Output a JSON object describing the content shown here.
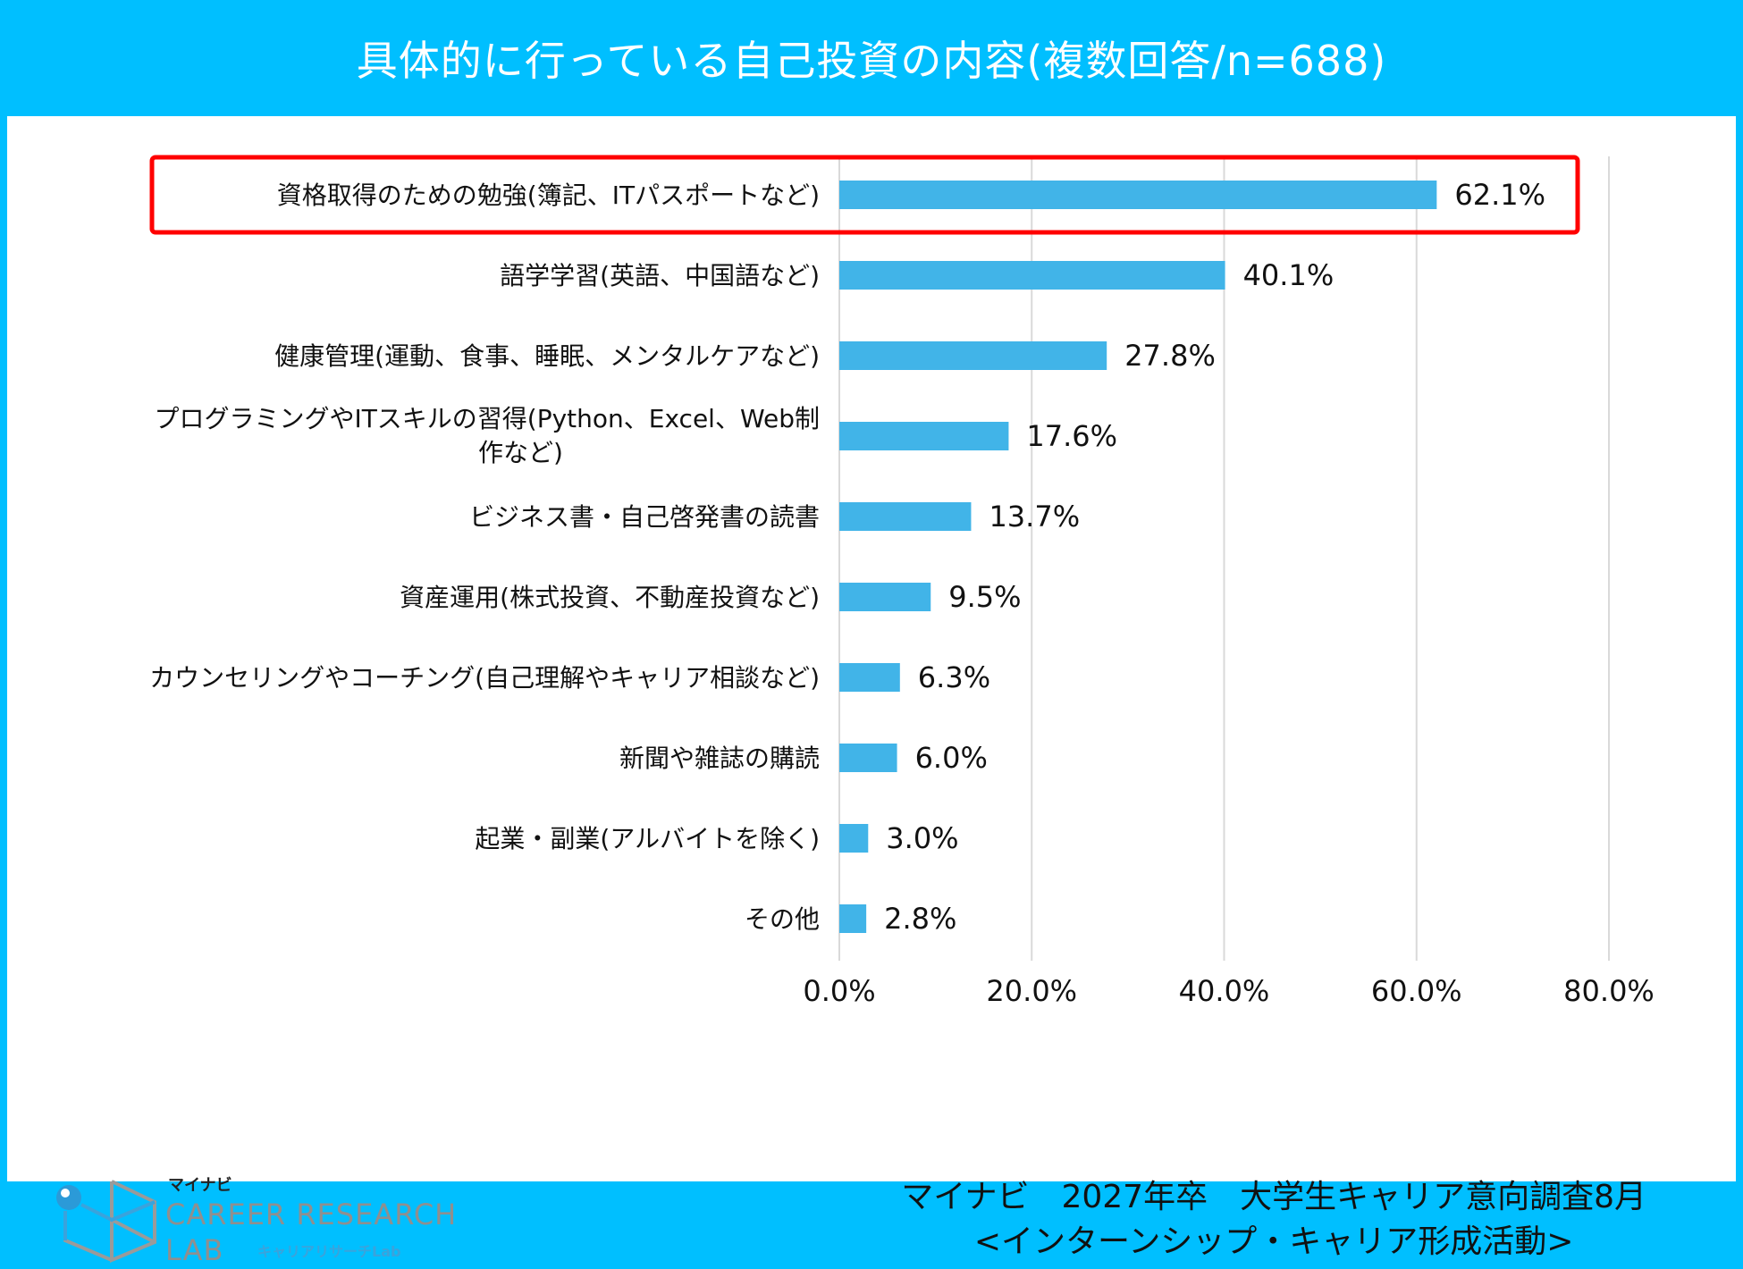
{
  "chart_data": {
    "type": "bar",
    "orientation": "horizontal",
    "title": "具体的に行っている自己投資の内容(複数回答/n=688)",
    "xlabel": "",
    "ylabel": "",
    "xlim": [
      0,
      80
    ],
    "ticks": [
      0,
      20,
      40,
      60,
      80
    ],
    "tick_labels": [
      "0.0%",
      "20.0%",
      "40.0%",
      "60.0%",
      "80.0%"
    ],
    "grid": true,
    "legend": "none",
    "highlighted_category_index": 0,
    "categories": [
      "資格取得のための勉強(簿記、ITパスポートなど)",
      "語学学習(英語、中国語など)",
      "健康管理(運動、食事、睡眠、メンタルケアなど)",
      "プログラミングやITスキルの習得(Python、Excel、Web制作など)",
      "ビジネス書・自己啓発書の読書",
      "資産運用(株式投資、不動産投資など)",
      "カウンセリングやコーチング(自己理解やキャリア相談など)",
      "新聞や雑誌の購読",
      "起業・副業(アルバイトを除く)",
      "その他"
    ],
    "category_label_lines": [
      [
        "資格取得のための勉強(簿記、ITパスポートなど)"
      ],
      [
        "語学学習(英語、中国語など)"
      ],
      [
        "健康管理(運動、食事、睡眠、メンタルケアなど)"
      ],
      [
        "プログラミングやITスキルの習得(Python、Excel、Web制",
        "作など)"
      ],
      [
        "ビジネス書・自己啓発書の読書"
      ],
      [
        "資産運用(株式投資、不動産投資など)"
      ],
      [
        "カウンセリングやコーチング(自己理解やキャリア相談など)"
      ],
      [
        "新聞や雑誌の購読"
      ],
      [
        "起業・副業(アルバイトを除く)"
      ],
      [
        "その他"
      ]
    ],
    "values": [
      62.1,
      40.1,
      27.8,
      17.6,
      13.7,
      9.5,
      6.3,
      6.0,
      3.0,
      2.8
    ],
    "value_labels": [
      "62.1%",
      "40.1%",
      "27.8%",
      "17.6%",
      "13.7%",
      "9.5%",
      "6.3%",
      "6.0%",
      "3.0%",
      "2.8%"
    ],
    "unit": "%"
  },
  "colors": {
    "frame": "#00BFFF",
    "bar": "#41B4E8",
    "highlight_box": "#FF0000",
    "gridline": "#D9D9D9",
    "text": "#111111"
  },
  "source": {
    "line1": "マイナビ　2027年卒　大学生キャリア意向調査8月",
    "line2": "<インターンシップ・キャリア形成活動>"
  },
  "logo": {
    "kana": "マイナビ",
    "line1": "CAREER RESEARCH",
    "line2": "LAB",
    "sub": "キャリアリサーチLab"
  }
}
